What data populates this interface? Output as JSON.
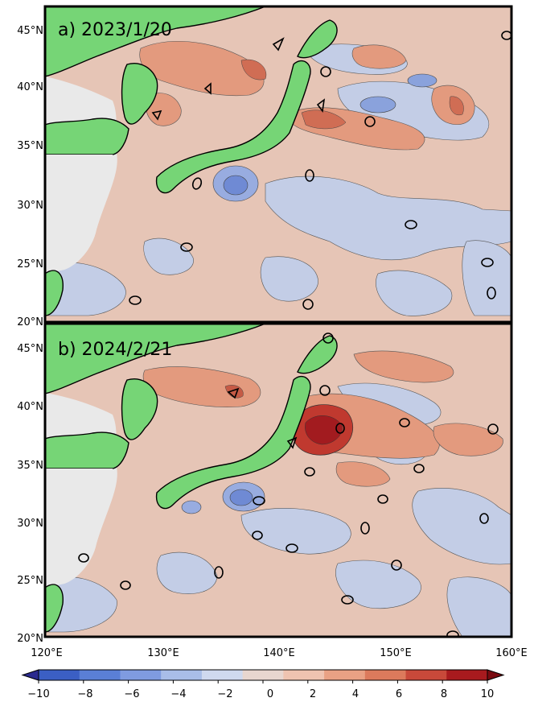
{
  "panels": [
    {
      "label": "a) 2023/1/20"
    },
    {
      "label": "b) 2024/2/21"
    }
  ],
  "axes": {
    "y_ticks": [
      "45°N",
      "40°N",
      "35°N",
      "30°N",
      "25°N",
      "20°N"
    ],
    "x_ticks": [
      "120°E",
      "130°E",
      "140°E",
      "150°E",
      "160°E"
    ]
  },
  "colorbar": {
    "ticks": [
      "−10",
      "−8",
      "−6",
      "−4",
      "−2",
      "0",
      "2",
      "4",
      "6",
      "8",
      "10"
    ],
    "colors": [
      "#3b5fc4",
      "#5a7fd6",
      "#7f9be0",
      "#a9bde8",
      "#cfd9ef",
      "#e8d6cf",
      "#efc3b0",
      "#e9a184",
      "#dc7a5c",
      "#c8493a",
      "#a81a1e"
    ]
  },
  "colors": {
    "land": "#76d576",
    "continent_grey": "#e9e9e9",
    "ocean_pos": "#e8c4b4",
    "ocean_neg": "#c2cde6",
    "frame": "#000000"
  }
}
